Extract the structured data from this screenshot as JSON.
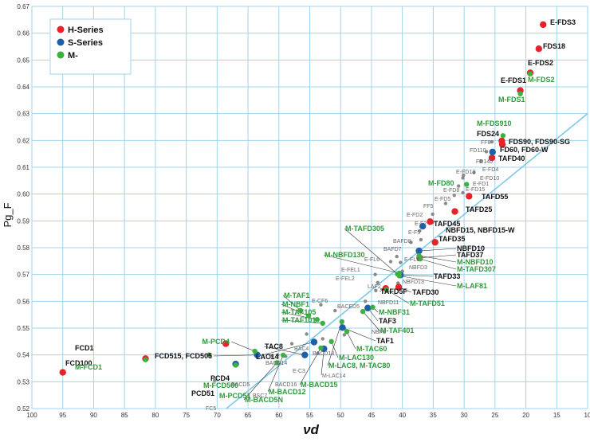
{
  "chart_data": {
    "type": "scatter",
    "title": "",
    "xlabel": "νd",
    "ylabel": "Pg_F",
    "xlim": [
      100,
      10
    ],
    "ylim": [
      0.52,
      0.67
    ],
    "x_ticks": [
      100,
      95,
      90,
      85,
      80,
      75,
      70,
      65,
      60,
      55,
      50,
      45,
      40,
      35,
      30,
      25,
      20,
      15,
      10
    ],
    "y_ticks": [
      0.52,
      0.53,
      0.54,
      0.55,
      0.56,
      0.57,
      0.58,
      0.59,
      0.6,
      0.61,
      0.62,
      0.63,
      0.64,
      0.65,
      0.66,
      0.67
    ],
    "grid": true,
    "legend_position": "top-left",
    "colors": {
      "H": "#e8212b",
      "S": "#1f5fa8",
      "M": "#3db043",
      "other": "#8a8a8a",
      "normal_line": "#7ec8e8",
      "grid": "#9fd4ec",
      "label_dark": "#111111",
      "label_green": "#2e9a3a",
      "label_gray": "#666666"
    },
    "legend": [
      {
        "key": "H",
        "label": "H-Series"
      },
      {
        "key": "S",
        "label": "S-Series"
      },
      {
        "key": "M",
        "label": "M-"
      }
    ],
    "normal_line": {
      "x": [
        68.5,
        10
      ],
      "y": [
        0.52,
        0.63
      ]
    },
    "points": [
      {
        "x": 95.0,
        "y": 0.5335,
        "s": "H",
        "label": "FCD100"
      },
      {
        "x": 81.6,
        "y": 0.5386,
        "s": "H",
        "label": "FCD1"
      },
      {
        "x": 81.6,
        "y": 0.5382,
        "s": "M",
        "label": "M-FCD1"
      },
      {
        "x": 67.0,
        "y": 0.5366,
        "s": "S",
        "label": "PCD51"
      },
      {
        "x": 67.0,
        "y": 0.5362,
        "s": "M",
        "label": "M-PCD51"
      },
      {
        "x": 71.3,
        "y": 0.54,
        "s": "M",
        "label": "M-FCD500"
      },
      {
        "x": 68.6,
        "y": 0.5442,
        "s": "H",
        "label": "PCD4"
      },
      {
        "x": 63.5,
        "y": 0.54,
        "s": "S",
        "label": "FCD515, FCD505"
      },
      {
        "x": 63.9,
        "y": 0.5414,
        "s": "M",
        "label": "M-PCD4"
      },
      {
        "x": 70.4,
        "y": 0.5305,
        "s": "other",
        "label": "FC5"
      },
      {
        "x": 61.3,
        "y": 0.5395,
        "s": "other",
        "label": "BACD5"
      },
      {
        "x": 60.2,
        "y": 0.54,
        "s": "other",
        "label": "BSC7"
      },
      {
        "x": 58.9,
        "y": 0.5395,
        "s": "other",
        "label": "BACD16"
      },
      {
        "x": 60.3,
        "y": 0.5371,
        "s": "M",
        "label": "M-BACD5N"
      },
      {
        "x": 59.3,
        "y": 0.5399,
        "s": "M",
        "label": "M-BACD12"
      },
      {
        "x": 57.9,
        "y": 0.5442,
        "s": "other",
        "label": "BACD14"
      },
      {
        "x": 55.8,
        "y": 0.54,
        "s": "S",
        "label": "TAC8"
      },
      {
        "x": 54.3,
        "y": 0.5448,
        "s": "S",
        "label": "LAC14"
      },
      {
        "x": 55.5,
        "y": 0.5478,
        "s": "other",
        "label": "BAC4"
      },
      {
        "x": 52.7,
        "y": 0.5423,
        "s": "S",
        "label": "M-LAC14"
      },
      {
        "x": 53.2,
        "y": 0.5426,
        "s": "M",
        "label": "M-BACD15"
      },
      {
        "x": 53.7,
        "y": 0.5406,
        "s": "other",
        "label": "E-C3"
      },
      {
        "x": 52.9,
        "y": 0.546,
        "s": "other",
        "label": "BACD18"
      },
      {
        "x": 51.5,
        "y": 0.545,
        "s": "M",
        "label": "M-LAC130"
      },
      {
        "x": 49.0,
        "y": 0.5487,
        "s": "M",
        "label": "M-TAC60"
      },
      {
        "x": 49.7,
        "y": 0.5502,
        "s": "S",
        "label": "TAF1"
      },
      {
        "x": 49.4,
        "y": 0.5475,
        "s": "other",
        "label": "NBF1"
      },
      {
        "x": 49.8,
        "y": 0.5524,
        "s": "M",
        "label": "M-LAC8, M-TAC80"
      },
      {
        "x": 56.5,
        "y": 0.5566,
        "s": "M",
        "label": "M-TAF1"
      },
      {
        "x": 55.2,
        "y": 0.5546,
        "s": "M",
        "label": "M-NBF1"
      },
      {
        "x": 53.8,
        "y": 0.5532,
        "s": "M",
        "label": "M-TAF105"
      },
      {
        "x": 52.9,
        "y": 0.5518,
        "s": "M",
        "label": "M-TAF101"
      },
      {
        "x": 53.2,
        "y": 0.5587,
        "s": "other",
        "label": "E-CF6"
      },
      {
        "x": 50.9,
        "y": 0.5565,
        "s": "other",
        "label": "BACED5"
      },
      {
        "x": 45.6,
        "y": 0.5575,
        "s": "S",
        "label": "TAF3"
      },
      {
        "x": 44.8,
        "y": 0.5578,
        "s": "M",
        "label": "M-NBF31"
      },
      {
        "x": 46.4,
        "y": 0.5562,
        "s": "M",
        "label": "M-TAF401"
      },
      {
        "x": 46.0,
        "y": 0.56,
        "s": "other",
        "label": "NBFD11"
      },
      {
        "x": 44.3,
        "y": 0.564,
        "s": "other",
        "label": "LAF2"
      },
      {
        "x": 42.7,
        "y": 0.5648,
        "s": "H",
        "label": "TAFD5F"
      },
      {
        "x": 42.6,
        "y": 0.5644,
        "s": "M",
        "label": "M-TAFD51"
      },
      {
        "x": 40.6,
        "y": 0.5653,
        "s": "H",
        "label": "TAFD30"
      },
      {
        "x": 40.7,
        "y": 0.5668,
        "s": "other",
        "label": "NBFD13"
      },
      {
        "x": 44.0,
        "y": 0.567,
        "s": "other",
        "label": "E-FEL2"
      },
      {
        "x": 44.4,
        "y": 0.57,
        "s": "other",
        "label": "E-FEL1"
      },
      {
        "x": 40.0,
        "y": 0.5712,
        "s": "other",
        "label": "NBFD3"
      },
      {
        "x": 40.3,
        "y": 0.5698,
        "s": "S",
        "label": "TAFD33"
      },
      {
        "x": 40.8,
        "y": 0.5702,
        "s": "M",
        "label": "M-TAFD305"
      },
      {
        "x": 40.5,
        "y": 0.5705,
        "s": "M",
        "label": "M-NBFD130"
      },
      {
        "x": 40.5,
        "y": 0.5695,
        "s": "M",
        "label": "M-LAF81"
      },
      {
        "x": 41.9,
        "y": 0.5748,
        "s": "other",
        "label": "E-FL6"
      },
      {
        "x": 40.9,
        "y": 0.5767,
        "s": "other",
        "label": "BAFD7"
      },
      {
        "x": 40.3,
        "y": 0.5745,
        "s": "other",
        "label": "E-FL5"
      },
      {
        "x": 37.3,
        "y": 0.5788,
        "s": "S",
        "label": "NBFD10"
      },
      {
        "x": 37.3,
        "y": 0.577,
        "s": "M",
        "label": "M-NBFD10"
      },
      {
        "x": 37.2,
        "y": 0.5762,
        "s": "H",
        "label": "TAFD37"
      },
      {
        "x": 37.1,
        "y": 0.5758,
        "s": "M",
        "label": "M-TAFD307"
      },
      {
        "x": 38.6,
        "y": 0.582,
        "s": "other",
        "label": "BAFD8"
      },
      {
        "x": 34.7,
        "y": 0.582,
        "s": "H",
        "label": "TAFD35"
      },
      {
        "x": 37.0,
        "y": 0.583,
        "s": "other",
        "label": "E-F5"
      },
      {
        "x": 37.2,
        "y": 0.5863,
        "s": "other",
        "label": "E-F2"
      },
      {
        "x": 35.1,
        "y": 0.5895,
        "s": "other",
        "label": "E-FD2"
      },
      {
        "x": 35.5,
        "y": 0.5897,
        "s": "H",
        "label": "TAFD45"
      },
      {
        "x": 36.7,
        "y": 0.588,
        "s": "S",
        "label": "NBFD15, NBFD15-W"
      },
      {
        "x": 35.1,
        "y": 0.5925,
        "s": "other",
        "label": "FF5"
      },
      {
        "x": 31.5,
        "y": 0.5935,
        "s": "H",
        "label": "TAFD25"
      },
      {
        "x": 33.0,
        "y": 0.5965,
        "s": "other",
        "label": "E-FD5"
      },
      {
        "x": 31.6,
        "y": 0.5995,
        "s": "other",
        "label": "E-FD8"
      },
      {
        "x": 29.2,
        "y": 0.5992,
        "s": "H",
        "label": "TAFD55"
      },
      {
        "x": 30.2,
        "y": 0.6005,
        "s": "other",
        "label": "E-FD15"
      },
      {
        "x": 30.9,
        "y": 0.603,
        "s": "other",
        "label": "E-FD1"
      },
      {
        "x": 29.6,
        "y": 0.6036,
        "s": "M",
        "label": "M-FD80"
      },
      {
        "x": 30.2,
        "y": 0.606,
        "s": "other",
        "label": "E-FD10"
      },
      {
        "x": 28.4,
        "y": 0.608,
        "s": "other",
        "label": "E-FD4"
      },
      {
        "x": 30.1,
        "y": 0.607,
        "s": "other",
        "label": "E-FD13"
      },
      {
        "x": 27.3,
        "y": 0.6123,
        "s": "other",
        "label": "FD140"
      },
      {
        "x": 25.5,
        "y": 0.6135,
        "s": "H",
        "label": "TAFD40"
      },
      {
        "x": 25.4,
        "y": 0.6157,
        "s": "S",
        "label": "FD60, FD60-W"
      },
      {
        "x": 26.4,
        "y": 0.6158,
        "s": "other",
        "label": "FD110"
      },
      {
        "x": 23.9,
        "y": 0.6198,
        "s": "H",
        "label": "FDS90, FDS90-SG"
      },
      {
        "x": 23.8,
        "y": 0.6185,
        "s": "H",
        "label": "FDS24"
      },
      {
        "x": 23.7,
        "y": 0.6218,
        "s": "M",
        "label": "M-FDS910"
      },
      {
        "x": 25.5,
        "y": 0.6195,
        "s": "other",
        "label": "FF8"
      },
      {
        "x": 20.9,
        "y": 0.6386,
        "s": "H",
        "label": "E-FDS1"
      },
      {
        "x": 20.9,
        "y": 0.6374,
        "s": "M",
        "label": "M-FDS1"
      },
      {
        "x": 19.3,
        "y": 0.6452,
        "s": "H",
        "label": "E-FDS2"
      },
      {
        "x": 19.3,
        "y": 0.6448,
        "s": "M",
        "label": "M-FDS2"
      },
      {
        "x": 17.9,
        "y": 0.6542,
        "s": "H",
        "label": "FDS18"
      },
      {
        "x": 17.2,
        "y": 0.6632,
        "s": "H",
        "label": "E-FDS3"
      }
    ]
  }
}
